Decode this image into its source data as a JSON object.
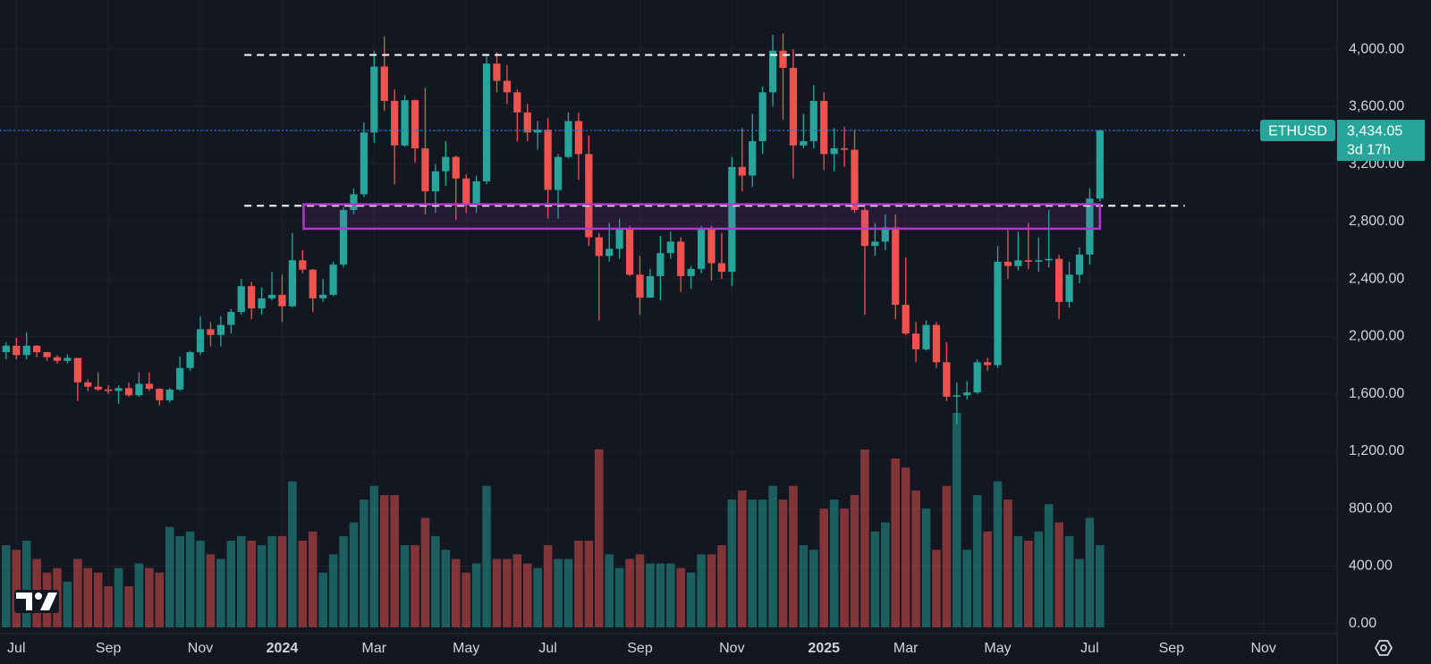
{
  "chart_data": {
    "type": "candlestick",
    "symbol": "ETHUSD",
    "x": [
      -1,
      0,
      1,
      2,
      3,
      4,
      5,
      6,
      7,
      8,
      9,
      10,
      11,
      12,
      13,
      14,
      15,
      16,
      17,
      18,
      19,
      20,
      21,
      22,
      23,
      24,
      25,
      26,
      27,
      28,
      29,
      30,
      31,
      32,
      33,
      34,
      35,
      36,
      37,
      38,
      39,
      40,
      41,
      42,
      43,
      44,
      45,
      46,
      47,
      48,
      49,
      50,
      51,
      52,
      53,
      54,
      55,
      56,
      57,
      58,
      59,
      60,
      61,
      62,
      63,
      64,
      65,
      66,
      67,
      68,
      69,
      70,
      71,
      72,
      73,
      74,
      75,
      76,
      77,
      78,
      79,
      80,
      81,
      82,
      83,
      84,
      85,
      86,
      87,
      88,
      89,
      90,
      91,
      92,
      93,
      94,
      95,
      96,
      97,
      98,
      99,
      100,
      101,
      102,
      103,
      104,
      105,
      106
    ],
    "open": [
      1890,
      1935,
      1870,
      1935,
      1890,
      1855,
      1830,
      1850,
      1680,
      1650,
      1630,
      1620,
      1640,
      1590,
      1670,
      1635,
      1555,
      1630,
      1780,
      1890,
      2050,
      2010,
      2080,
      2170,
      2350,
      2195,
      2265,
      2290,
      2210,
      2530,
      2465,
      2265,
      2290,
      2500,
      2880,
      2990,
      3420,
      3880,
      3640,
      3330,
      3645,
      3310,
      3010,
      3150,
      3250,
      3100,
      2920,
      3080,
      3900,
      3780,
      3700,
      3560,
      3420,
      3440,
      3020,
      3250,
      3500,
      3270,
      2690,
      2560,
      2610,
      2750,
      2430,
      2270,
      2420,
      2580,
      2660,
      2420,
      2470,
      2750,
      2510,
      2450,
      3180,
      3120,
      3360,
      3700,
      3990,
      3870,
      3330,
      3360,
      3640,
      3270,
      3310,
      3300,
      2880,
      2630,
      2660,
      2760,
      2220,
      2020,
      1910,
      2080,
      1820,
      1580,
      1590,
      1610,
      1820,
      1800,
      2520,
      2490,
      2530,
      2520,
      2530,
      2540,
      2240,
      2430,
      2570,
      2960
    ],
    "high": [
      1960,
      1990,
      2030,
      1940,
      1890,
      1870,
      1875,
      1850,
      1700,
      1750,
      1660,
      1660,
      1680,
      1750,
      1750,
      1640,
      1640,
      1860,
      1900,
      2140,
      2100,
      2140,
      2190,
      2400,
      2380,
      2340,
      2450,
      2430,
      2720,
      2600,
      2470,
      2400,
      2520,
      2900,
      3030,
      3490,
      3990,
      4090,
      3720,
      3680,
      3650,
      3730,
      3200,
      3360,
      3260,
      3130,
      3120,
      3950,
      3980,
      3890,
      3720,
      3620,
      3500,
      3520,
      3270,
      3560,
      3560,
      3400,
      2720,
      2790,
      2820,
      2770,
      2560,
      2470,
      2700,
      2730,
      2690,
      2490,
      2770,
      2770,
      2720,
      3250,
      3450,
      3550,
      3740,
      4100,
      4110,
      4000,
      3550,
      3750,
      3700,
      3450,
      3460,
      3440,
      2900,
      2790,
      2850,
      2850,
      2550,
      2100,
      2110,
      2100,
      1960,
      1680,
      1690,
      1840,
      1850,
      2630,
      2740,
      2730,
      2790,
      2690,
      2880,
      2570,
      2520,
      2620,
      3030,
      3440
    ],
    "low": [
      1840,
      1840,
      1840,
      1855,
      1830,
      1810,
      1810,
      1550,
      1620,
      1620,
      1600,
      1530,
      1580,
      1580,
      1620,
      1520,
      1540,
      1620,
      1760,
      1870,
      1930,
      1930,
      2020,
      2150,
      2120,
      2150,
      2250,
      2100,
      2200,
      2440,
      2170,
      2240,
      2280,
      2480,
      2850,
      2970,
      3350,
      3570,
      3060,
      3320,
      3210,
      2850,
      2860,
      3050,
      2810,
      2860,
      2860,
      3060,
      3700,
      3620,
      3360,
      3360,
      3300,
      2820,
      2820,
      3240,
      3090,
      2630,
      2110,
      2520,
      2540,
      2420,
      2150,
      2270,
      2250,
      2540,
      2310,
      2330,
      2440,
      2390,
      2400,
      2350,
      3010,
      3040,
      3270,
      3600,
      3510,
      3100,
      3310,
      3310,
      3160,
      3150,
      3180,
      2860,
      2150,
      2560,
      2600,
      2120,
      2010,
      1820,
      1900,
      1780,
      1550,
      1390,
      1560,
      1600,
      1760,
      1780,
      2400,
      2460,
      2470,
      2450,
      2480,
      2120,
      2200,
      2370,
      2500,
      2940
    ],
    "close": [
      1935,
      1870,
      1935,
      1890,
      1855,
      1830,
      1850,
      1680,
      1650,
      1630,
      1620,
      1640,
      1590,
      1670,
      1635,
      1555,
      1630,
      1780,
      1890,
      2050,
      2010,
      2080,
      2170,
      2350,
      2195,
      2265,
      2290,
      2210,
      2530,
      2465,
      2265,
      2290,
      2500,
      2880,
      2990,
      3420,
      3880,
      3640,
      3330,
      3645,
      3310,
      3010,
      3150,
      3250,
      3100,
      2920,
      3080,
      3900,
      3780,
      3700,
      3560,
      3420,
      3440,
      3020,
      3250,
      3500,
      3270,
      2690,
      2560,
      2610,
      2750,
      2430,
      2270,
      2420,
      2580,
      2660,
      2420,
      2470,
      2750,
      2510,
      2450,
      3180,
      3120,
      3360,
      3700,
      3990,
      3870,
      3330,
      3360,
      3640,
      3270,
      3310,
      3300,
      2880,
      2630,
      2660,
      2760,
      2220,
      2020,
      1910,
      2080,
      1820,
      1580,
      1590,
      1610,
      1820,
      1800,
      2520,
      2490,
      2530,
      2520,
      2530,
      2540,
      2240,
      2430,
      2570,
      2960,
      3434.05
    ],
    "volume": [
      90,
      85,
      95,
      75,
      60,
      65,
      50,
      75,
      65,
      60,
      45,
      65,
      45,
      70,
      65,
      60,
      110,
      100,
      105,
      95,
      80,
      75,
      95,
      100,
      95,
      90,
      100,
      100,
      160,
      95,
      105,
      60,
      80,
      100,
      115,
      140,
      155,
      145,
      145,
      90,
      90,
      120,
      100,
      85,
      75,
      60,
      70,
      155,
      75,
      75,
      80,
      70,
      65,
      90,
      75,
      75,
      95,
      95,
      195,
      80,
      65,
      75,
      80,
      70,
      70,
      70,
      65,
      60,
      80,
      80,
      90,
      140,
      150,
      140,
      140,
      155,
      140,
      155,
      90,
      85,
      130,
      140,
      130,
      145,
      195,
      105,
      115,
      185,
      175,
      150,
      130,
      85,
      155,
      235,
      85,
      145,
      105,
      160,
      140,
      100,
      95,
      105,
      135,
      115,
      100,
      75,
      120,
      90
    ],
    "up_color": "#26a69a",
    "down_color": "#ef5350",
    "xlim": [
      -1.6,
      129.2
    ],
    "ylim": [
      -70,
      4343
    ],
    "xticks": [
      {
        "value": 0,
        "label": "Jul"
      },
      {
        "value": 9,
        "label": "Sep"
      },
      {
        "value": 18,
        "label": "Nov"
      },
      {
        "value": 26,
        "label": "2024"
      },
      {
        "value": 35,
        "label": "Mar"
      },
      {
        "value": 44,
        "label": "May"
      },
      {
        "value": 52,
        "label": "Jul"
      },
      {
        "value": 61,
        "label": "Sep"
      },
      {
        "value": 70,
        "label": "Nov"
      },
      {
        "value": 79,
        "label": "2025"
      },
      {
        "value": 87,
        "label": "Mar"
      },
      {
        "value": 96,
        "label": "May"
      },
      {
        "value": 105,
        "label": "Jul"
      },
      {
        "value": 113,
        "label": "Sep"
      },
      {
        "value": 122,
        "label": "Nov"
      }
    ],
    "yticks": [
      {
        "value": 0,
        "label": "0.00"
      },
      {
        "value": 400,
        "label": "400.00"
      },
      {
        "value": 800,
        "label": "800.00"
      },
      {
        "value": 1200,
        "label": "1,200.00"
      },
      {
        "value": 1600,
        "label": "1,600.00"
      },
      {
        "value": 2000,
        "label": "2,000.00"
      },
      {
        "value": 2400,
        "label": "2,400.00"
      },
      {
        "value": 2800,
        "label": "2,800.00"
      },
      {
        "value": 3200,
        "label": "3,200.00"
      },
      {
        "value": 3600,
        "label": "3,600.00"
      },
      {
        "value": 4000,
        "label": "4,000.00"
      }
    ],
    "grid": true,
    "levels": [
      {
        "value": 3960,
        "from": 22.3,
        "to": 114.3
      },
      {
        "value": 2910,
        "from": 22.3,
        "to": 114.3
      }
    ],
    "zone": {
      "low": 2750,
      "high": 2920,
      "from": 28.1,
      "to": 106,
      "color": "#b03ac9"
    },
    "last_price": {
      "value": 3434.05,
      "label": "3,434.05",
      "color": "#2962ff"
    },
    "countdown": "3d 17h"
  }
}
